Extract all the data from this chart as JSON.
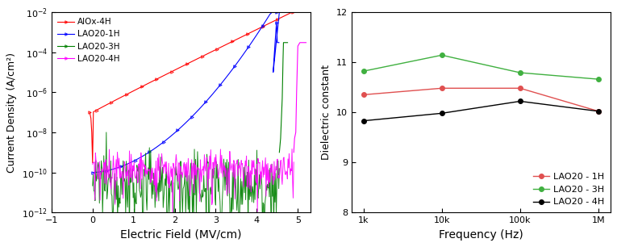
{
  "left_chart": {
    "xlabel": "Electric Field (MV/cm)",
    "ylabel": "Current Density (A/cm²)",
    "xlim": [
      -1,
      5.3
    ],
    "ylim_log": [
      -12,
      -2
    ],
    "xticks": [
      -1,
      0,
      1,
      2,
      3,
      4,
      5
    ]
  },
  "right_chart": {
    "xlabel": "Frequency (Hz)",
    "ylabel": "Dielectric constant",
    "ylim": [
      8,
      12
    ],
    "yticks": [
      8,
      9,
      10,
      11,
      12
    ],
    "frequencies": [
      1000,
      10000,
      100000,
      1000000
    ],
    "freq_labels": [
      "1k",
      "10k",
      "100k",
      "1M"
    ],
    "series": [
      {
        "label": "LAO20 - 1H",
        "color": "#e05050",
        "marker": "o",
        "values": [
          10.35,
          10.48,
          10.48,
          10.02
        ]
      },
      {
        "label": "LAO20 - 3H",
        "color": "#40b040",
        "marker": "o",
        "values": [
          10.82,
          11.14,
          10.79,
          10.66
        ]
      },
      {
        "label": "LAO20 - 4H",
        "color": "black",
        "marker": "o",
        "values": [
          9.83,
          9.98,
          10.22,
          10.02
        ]
      }
    ]
  }
}
